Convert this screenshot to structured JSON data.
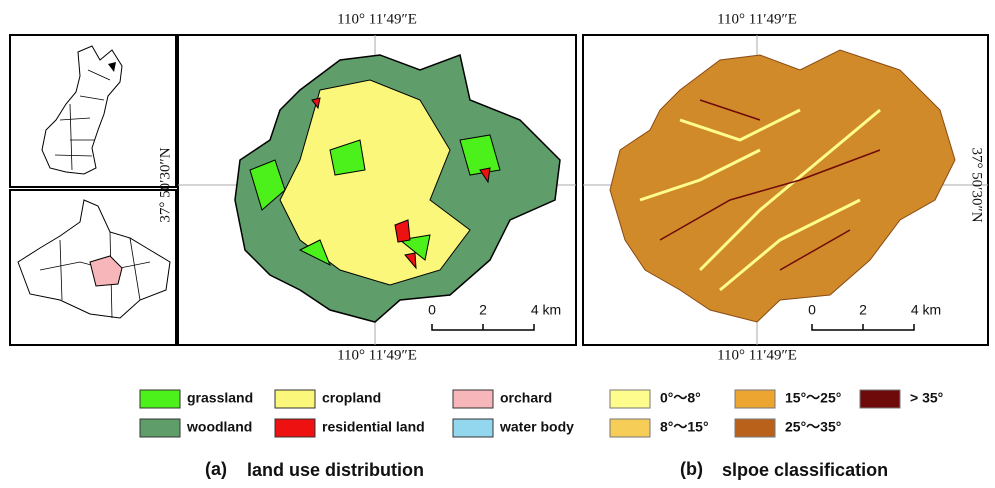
{
  "panel_a": {
    "top_coord": "110°  11′49″E",
    "bottom_coord": "110°  11′49″E",
    "side_coord": "37°  50′30″N",
    "scale": [
      "0",
      "2",
      "4 km"
    ]
  },
  "panel_b": {
    "top_coord": "110°  11′49″E",
    "bottom_coord": "110°  11′49″E",
    "side_coord": "37°  50′30″N",
    "scale": [
      "0",
      "2",
      "4 km"
    ]
  },
  "legend": {
    "land_use": [
      {
        "label": "grassland",
        "color": "#4cf01a"
      },
      {
        "label": "woodland",
        "color": "#5f9e6a"
      },
      {
        "label": "cropland",
        "color": "#fbf77a"
      },
      {
        "label": "residential land",
        "color": "#ee1111"
      },
      {
        "label": "orchard",
        "color": "#f7b6b9"
      },
      {
        "label": "water body",
        "color": "#93d7ef"
      }
    ],
    "slope": [
      {
        "label": "0°～8°",
        "color": "#fdfc8c"
      },
      {
        "label": "8°～15°",
        "color": "#f6cd56"
      },
      {
        "label": "15°～25°",
        "color": "#eda531"
      },
      {
        "label": "25°～35°",
        "color": "#b9611a"
      },
      {
        "label": "> 35°",
        "color": "#6e0a0a"
      }
    ]
  },
  "captions": [
    {
      "letter": "(a)",
      "text": "land use distribution"
    },
    {
      "letter": "(b)",
      "text": "slpoe classification"
    }
  ]
}
